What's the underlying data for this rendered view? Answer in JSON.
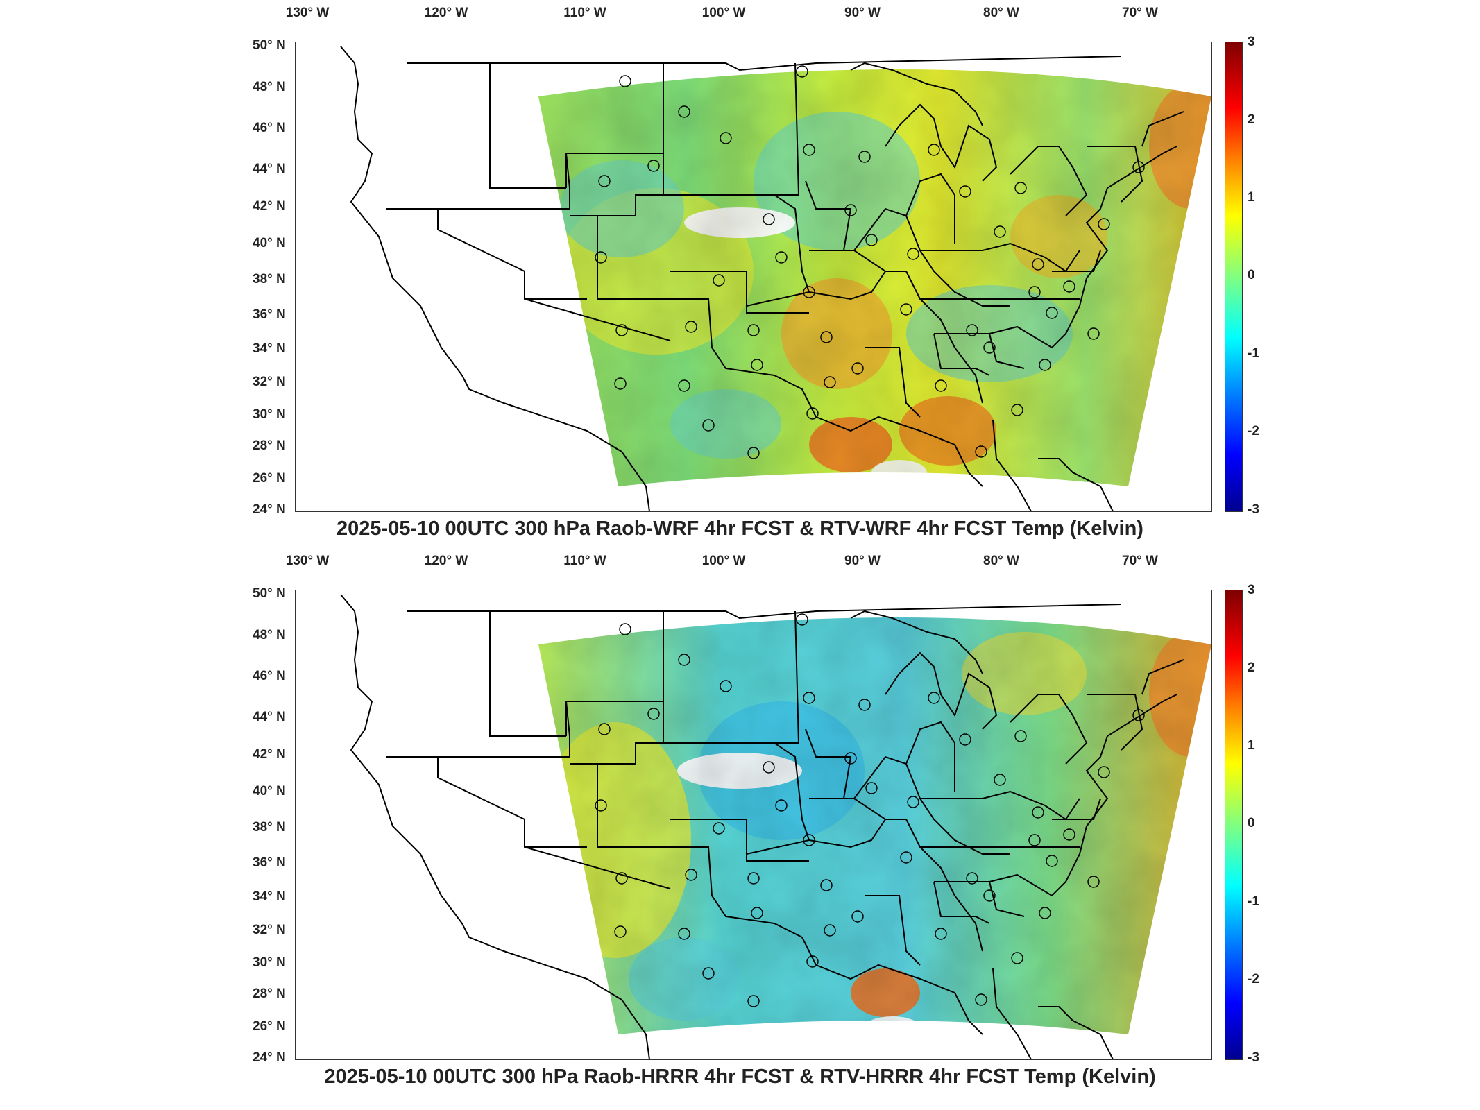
{
  "panels": [
    {
      "title": "2025-05-10 00UTC 300 hPa Raob-WRF 4hr FCST & RTV-WRF 4hr FCST Temp (Kelvin)",
      "variant": "wrf"
    },
    {
      "title": "2025-05-10 00UTC 300 hPa Raob-HRRR 4hr FCST & RTV-HRRR 4hr FCST Temp (Kelvin)",
      "variant": "hrrr"
    }
  ],
  "lon_labels": [
    "130° W",
    "120° W",
    "110° W",
    "100° W",
    "90° W",
    "80° W",
    "70° W"
  ],
  "lat_labels": [
    "50° N",
    "48° N",
    "46° N",
    "44° N",
    "42° N",
    "40° N",
    "38° N",
    "36° N",
    "34° N",
    "32° N",
    "30° N",
    "28° N",
    "26° N",
    "24° N"
  ],
  "colorbar": {
    "ticks": [
      "3",
      "2",
      "1",
      "0",
      "-1",
      "-2",
      "-3"
    ],
    "min": -3,
    "max": 3,
    "colormap": "jet"
  },
  "colors": {
    "coast": "#000000",
    "station_marker": "#000000",
    "missing": "#ffffff"
  }
}
